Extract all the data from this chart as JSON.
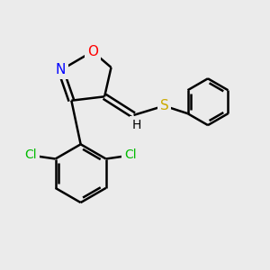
{
  "bg_color": "#ebebeb",
  "bond_color": "#000000",
  "bond_width": 1.8,
  "atom_colors": {
    "O": "#ff0000",
    "N": "#0000ff",
    "S": "#ccaa00",
    "Cl": "#00bb00",
    "C": "#000000",
    "H": "#000000"
  },
  "font_size": 10,
  "figsize": [
    3.0,
    3.0
  ],
  "dpi": 100
}
